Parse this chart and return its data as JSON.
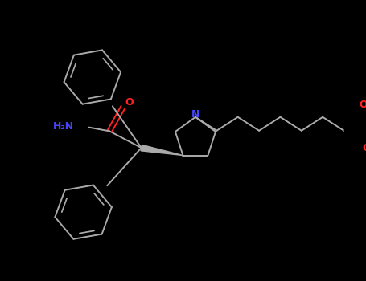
{
  "background_color": "#000000",
  "figsize": [
    4.55,
    3.5
  ],
  "dpi": 100,
  "colors": {
    "bond": "#aaaaaa",
    "heteroatom_N": "#4444ff",
    "heteroatom_O": "#ff2222",
    "carbon": "#aaaaaa",
    "background": "#000000"
  },
  "layout": {
    "xlim": [
      0,
      455
    ],
    "ylim": [
      0,
      350
    ]
  }
}
